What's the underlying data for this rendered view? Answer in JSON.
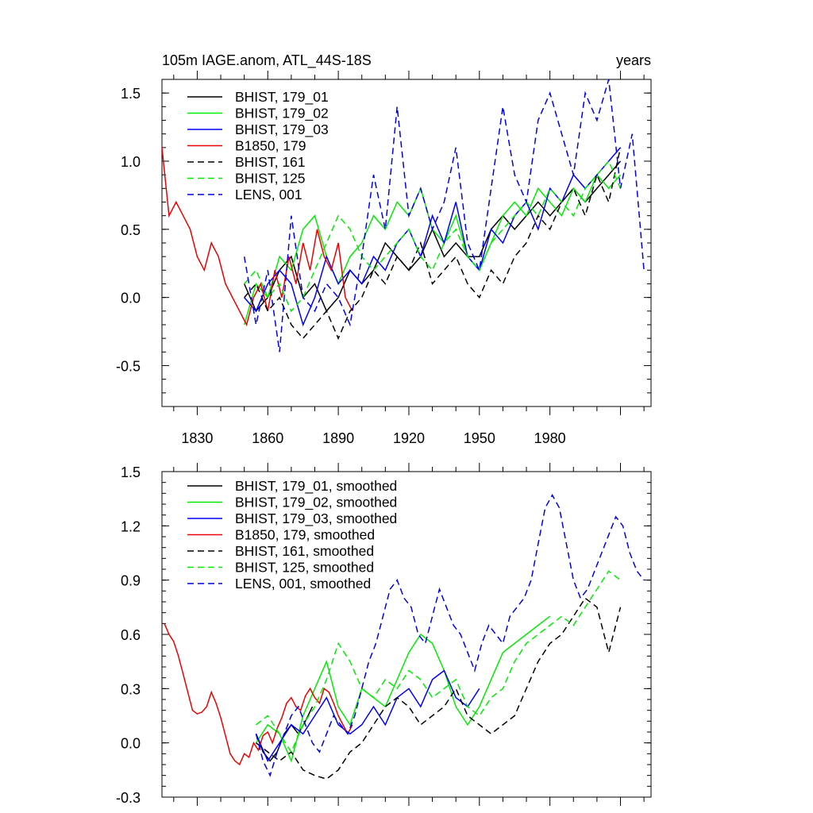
{
  "chart_data": [
    {
      "type": "line",
      "title": "105m IAGE.anom, ATL_44S-18S",
      "title_right": "years",
      "xlim": [
        1815,
        2023
      ],
      "ylim": [
        -0.8,
        1.6
      ],
      "yticks": [
        -0.5,
        0.0,
        0.5,
        1.0,
        1.5
      ],
      "ytick_labels": [
        "-0.5",
        "0.0",
        "0.5",
        "1.0",
        "1.5"
      ],
      "xticks": [
        1830,
        1860,
        1890,
        1920,
        1950,
        1980
      ],
      "xtick_labels": [
        "1830",
        "1860",
        "1890",
        "1920",
        "1950",
        "1980"
      ],
      "legend": [
        "BHIST, 179_01",
        "BHIST, 179_02",
        "BHIST, 179_03",
        "B1850, 179",
        "BHIST, 161",
        "BHIST, 125",
        "LENS, 001"
      ],
      "series": [
        {
          "name": "BHIST, 179_01",
          "color": "#000000",
          "dash": false,
          "x": [
            1850,
            1855,
            1860,
            1865,
            1870,
            1875,
            1880,
            1885,
            1890,
            1895,
            1900,
            1905,
            1910,
            1915,
            1920,
            1925,
            1930,
            1935,
            1940,
            1945,
            1950,
            1955,
            1960,
            1965,
            1970,
            1975,
            1980,
            1985,
            1990,
            1995,
            2000,
            2005,
            2010
          ],
          "y": [
            0.1,
            -0.1,
            0.0,
            0.2,
            0.3,
            0.0,
            0.1,
            -0.1,
            0.0,
            0.2,
            0.1,
            0.2,
            0.4,
            0.3,
            0.2,
            0.3,
            0.5,
            0.3,
            0.4,
            0.3,
            0.3,
            0.5,
            0.6,
            0.5,
            0.6,
            0.7,
            0.6,
            0.7,
            0.8,
            0.7,
            0.8,
            0.9,
            1.0
          ]
        },
        {
          "name": "BHIST, 179_02",
          "color": "#00ee00",
          "dash": false,
          "x": [
            1850,
            1855,
            1860,
            1865,
            1870,
            1875,
            1880,
            1885,
            1890,
            1895,
            1900,
            1905,
            1910,
            1915,
            1920,
            1925,
            1930,
            1935,
            1940,
            1945,
            1950,
            1955,
            1960,
            1965,
            1970,
            1975,
            1980,
            1985,
            1990,
            1995,
            2000,
            2005,
            2010
          ],
          "y": [
            -0.2,
            0.1,
            0.0,
            0.3,
            0.2,
            0.5,
            0.6,
            0.3,
            0.1,
            0.3,
            0.4,
            0.6,
            0.5,
            0.7,
            0.6,
            0.8,
            0.5,
            0.4,
            0.6,
            0.3,
            0.2,
            0.4,
            0.6,
            0.7,
            0.6,
            0.8,
            0.7,
            0.6,
            0.8,
            0.7,
            0.9,
            0.8,
            0.9
          ]
        },
        {
          "name": "BHIST, 179_03",
          "color": "#0000ff",
          "dash": false,
          "x": [
            1850,
            1855,
            1860,
            1865,
            1870,
            1875,
            1880,
            1885,
            1890,
            1895,
            1900,
            1905,
            1910,
            1915,
            1920,
            1925,
            1930,
            1935,
            1940,
            1945,
            1950,
            1955,
            1960,
            1965,
            1970,
            1975,
            1980,
            1985,
            1990,
            1995,
            2000,
            2005,
            2010
          ],
          "y": [
            0.0,
            -0.1,
            0.1,
            0.2,
            0.1,
            -0.2,
            0.0,
            0.3,
            0.1,
            0.2,
            0.1,
            0.3,
            0.2,
            0.4,
            0.5,
            0.3,
            0.6,
            0.4,
            0.7,
            0.3,
            0.2,
            0.5,
            0.4,
            0.6,
            0.7,
            0.5,
            0.8,
            0.7,
            0.9,
            0.8,
            0.9,
            1.0,
            1.1
          ]
        },
        {
          "name": "B1850, 179",
          "color": "#ee0000",
          "dash": false,
          "x": [
            1815,
            1818,
            1821,
            1824,
            1827,
            1830,
            1833,
            1836,
            1839,
            1842,
            1845,
            1848,
            1851,
            1854,
            1857,
            1860,
            1863,
            1866,
            1869,
            1872,
            1875,
            1878,
            1881,
            1884,
            1887,
            1890,
            1893,
            1896
          ],
          "y": [
            1.1,
            0.6,
            0.7,
            0.6,
            0.5,
            0.3,
            0.2,
            0.4,
            0.3,
            0.1,
            0.0,
            -0.1,
            -0.2,
            0.0,
            0.1,
            -0.1,
            0.2,
            0.0,
            0.3,
            0.1,
            0.4,
            0.2,
            0.5,
            0.3,
            0.2,
            0.4,
            0.0,
            -0.1
          ]
        },
        {
          "name": "BHIST, 161",
          "color": "#000000",
          "dash": true,
          "x": [
            1850,
            1855,
            1860,
            1865,
            1870,
            1875,
            1880,
            1885,
            1890,
            1895,
            1900,
            1905,
            1910,
            1915,
            1920,
            1925,
            1930,
            1935,
            1940,
            1945,
            1950,
            1955,
            1960,
            1965,
            1970,
            1975,
            1980,
            1985,
            1990,
            1995,
            2000,
            2005,
            2010
          ],
          "y": [
            0.0,
            0.1,
            -0.1,
            0.0,
            -0.2,
            -0.3,
            -0.2,
            -0.1,
            -0.3,
            -0.1,
            0.0,
            0.2,
            0.1,
            0.3,
            0.2,
            0.4,
            0.1,
            0.2,
            0.3,
            0.1,
            0.0,
            0.2,
            0.1,
            0.3,
            0.4,
            0.6,
            0.5,
            0.7,
            0.8,
            0.6,
            0.9,
            0.7,
            1.1
          ]
        },
        {
          "name": "BHIST, 125",
          "color": "#00ee00",
          "dash": true,
          "x": [
            1850,
            1855,
            1860,
            1865,
            1870,
            1875,
            1880,
            1885,
            1890,
            1895,
            1900,
            1905,
            1910,
            1915,
            1920,
            1925,
            1930,
            1935,
            1940,
            1945,
            1950,
            1955,
            1960,
            1965,
            1970,
            1975,
            1980,
            1985,
            1990,
            1995,
            2000,
            2005,
            2010
          ],
          "y": [
            0.1,
            0.2,
            0.0,
            0.1,
            -0.1,
            0.0,
            0.2,
            0.4,
            0.6,
            0.5,
            0.3,
            0.2,
            0.3,
            0.4,
            0.5,
            0.3,
            0.2,
            0.4,
            0.5,
            0.3,
            0.2,
            0.4,
            0.5,
            0.6,
            0.7,
            0.6,
            0.8,
            0.7,
            0.6,
            0.8,
            0.9,
            1.0,
            0.8
          ]
        },
        {
          "name": "LENS, 001",
          "color": "#0000ee",
          "dash": true,
          "x": [
            1850,
            1855,
            1860,
            1865,
            1870,
            1875,
            1880,
            1885,
            1890,
            1895,
            1900,
            1905,
            1910,
            1915,
            1920,
            1925,
            1930,
            1935,
            1940,
            1945,
            1950,
            1955,
            1960,
            1965,
            1970,
            1975,
            1980,
            1985,
            1990,
            1995,
            2000,
            2005,
            2010,
            2015,
            2020
          ],
          "y": [
            0.3,
            -0.2,
            0.2,
            -0.4,
            0.6,
            0.0,
            -0.1,
            0.1,
            0.0,
            -0.2,
            0.3,
            0.9,
            0.5,
            1.4,
            0.6,
            0.8,
            0.5,
            0.7,
            1.1,
            0.4,
            0.2,
            0.8,
            1.4,
            0.9,
            0.7,
            1.3,
            1.5,
            1.2,
            0.9,
            1.5,
            1.3,
            1.6,
            0.8,
            1.2,
            0.2
          ]
        }
      ]
    },
    {
      "type": "line",
      "title": "",
      "xlim": [
        1815,
        2023
      ],
      "ylim": [
        -0.3,
        1.5
      ],
      "yticks": [
        -0.3,
        0.0,
        0.3,
        0.6,
        0.9,
        1.2,
        1.5
      ],
      "ytick_labels": [
        "-0.3",
        "0.0",
        "0.3",
        "0.6",
        "0.9",
        "1.2",
        "1.5"
      ],
      "legend": [
        "BHIST, 179_01, smoothed",
        "BHIST, 179_02, smoothed",
        "BHIST, 179_03, smoothed",
        "B1850, 179, smoothed",
        "BHIST, 161, smoothed",
        "BHIST, 125, smoothed",
        "LENS, 001, smoothed"
      ],
      "series": [
        {
          "name": "BHIST, 179_01, smoothed",
          "color": "#000000",
          "dash": false,
          "x": [
            1855,
            1858,
            1861,
            1864,
            1867,
            1870,
            1873,
            1876,
            1879
          ],
          "y": [
            0.05,
            -0.05,
            -0.1,
            -0.05,
            0.05,
            0.1,
            0.05,
            0.12,
            0.2
          ]
        },
        {
          "name": "BHIST, 179_02, smoothed",
          "color": "#00ee00",
          "dash": false,
          "x": [
            1855,
            1860,
            1865,
            1870,
            1875,
            1880,
            1885,
            1890,
            1895,
            1900,
            1905,
            1910,
            1915,
            1920,
            1925,
            1930,
            1935,
            1940,
            1945,
            1950,
            1955,
            1960,
            1965,
            1970,
            1975,
            1980
          ],
          "y": [
            0.0,
            0.1,
            0.05,
            -0.1,
            0.15,
            0.3,
            0.45,
            0.2,
            0.1,
            0.3,
            0.25,
            0.2,
            0.35,
            0.5,
            0.6,
            0.55,
            0.4,
            0.2,
            0.1,
            0.2,
            0.35,
            0.5,
            0.55,
            0.6,
            0.65,
            0.7
          ]
        },
        {
          "name": "BHIST, 179_03, smoothed",
          "color": "#0000ff",
          "dash": false,
          "x": [
            1855,
            1860,
            1865,
            1870,
            1875,
            1880,
            1885,
            1890,
            1895,
            1900,
            1905,
            1910,
            1915,
            1920,
            1925,
            1930,
            1935,
            1940,
            1945,
            1950
          ],
          "y": [
            0.05,
            -0.1,
            0.0,
            0.1,
            0.05,
            0.15,
            0.25,
            0.1,
            0.05,
            0.1,
            0.2,
            0.1,
            0.25,
            0.3,
            0.2,
            0.35,
            0.4,
            0.25,
            0.2,
            0.3
          ]
        },
        {
          "name": "B1850, 179, smoothed",
          "color": "#ee0000",
          "dash": false,
          "x": [
            1816,
            1818,
            1820,
            1822,
            1824,
            1826,
            1828,
            1830,
            1832,
            1834,
            1836,
            1838,
            1840,
            1842,
            1844,
            1846,
            1848,
            1850,
            1852,
            1854,
            1856,
            1858,
            1860,
            1862,
            1864,
            1866,
            1868,
            1870,
            1872,
            1874,
            1876,
            1878,
            1880,
            1882,
            1884,
            1886,
            1888,
            1890,
            1892,
            1894,
            1896
          ],
          "y": [
            0.66,
            0.6,
            0.56,
            0.48,
            0.38,
            0.28,
            0.18,
            0.16,
            0.17,
            0.2,
            0.28,
            0.22,
            0.14,
            0.04,
            -0.06,
            -0.1,
            -0.12,
            -0.06,
            -0.08,
            0.0,
            -0.04,
            0.04,
            0.06,
            0.0,
            0.08,
            0.14,
            0.22,
            0.25,
            0.2,
            0.18,
            0.26,
            0.3,
            0.25,
            0.22,
            0.3,
            0.28,
            0.22,
            0.15,
            0.1,
            0.05,
            0.1
          ]
        },
        {
          "name": "BHIST, 161, smoothed",
          "color": "#000000",
          "dash": true,
          "x": [
            1855,
            1860,
            1865,
            1870,
            1875,
            1880,
            1885,
            1890,
            1895,
            1900,
            1905,
            1910,
            1915,
            1920,
            1925,
            1930,
            1935,
            1940,
            1945,
            1950,
            1955,
            1960,
            1965,
            1970,
            1975,
            1980,
            1985,
            1990,
            1995,
            2000,
            2005,
            2010
          ],
          "y": [
            0.0,
            -0.05,
            -0.1,
            -0.05,
            -0.15,
            -0.18,
            -0.2,
            -0.15,
            -0.05,
            0.0,
            0.1,
            0.2,
            0.25,
            0.2,
            0.1,
            0.15,
            0.2,
            0.3,
            0.15,
            0.1,
            0.05,
            0.1,
            0.15,
            0.3,
            0.45,
            0.55,
            0.6,
            0.7,
            0.8,
            0.75,
            0.5,
            0.75
          ]
        },
        {
          "name": "BHIST, 125, smoothed",
          "color": "#00ee00",
          "dash": true,
          "x": [
            1855,
            1860,
            1865,
            1870,
            1875,
            1880,
            1885,
            1890,
            1895,
            1900,
            1905,
            1910,
            1915,
            1920,
            1925,
            1930,
            1935,
            1940,
            1945,
            1950,
            1955,
            1960,
            1965,
            1970,
            1975,
            1980,
            1985,
            1990,
            1995,
            2000,
            2005,
            2010
          ],
          "y": [
            0.1,
            0.15,
            0.05,
            -0.05,
            0.1,
            0.2,
            0.35,
            0.55,
            0.45,
            0.3,
            0.25,
            0.35,
            0.3,
            0.4,
            0.35,
            0.25,
            0.3,
            0.35,
            0.2,
            0.15,
            0.25,
            0.3,
            0.45,
            0.55,
            0.6,
            0.65,
            0.7,
            0.65,
            0.75,
            0.85,
            0.95,
            0.9
          ]
        },
        {
          "name": "LENS, 001, smoothed",
          "color": "#0000ee",
          "dash": true,
          "x": [
            1855,
            1858,
            1861,
            1864,
            1867,
            1870,
            1873,
            1876,
            1879,
            1882,
            1885,
            1888,
            1891,
            1894,
            1897,
            1900,
            1903,
            1906,
            1909,
            1912,
            1915,
            1918,
            1921,
            1924,
            1927,
            1930,
            1933,
            1936,
            1939,
            1942,
            1945,
            1948,
            1951,
            1954,
            1957,
            1960,
            1963,
            1966,
            1969,
            1972,
            1975,
            1978,
            1981,
            1984,
            1987,
            1990,
            1993,
            1996,
            1999,
            2002,
            2005,
            2008,
            2011,
            2014,
            2017,
            2020
          ],
          "y": [
            0.05,
            -0.1,
            -0.18,
            -0.05,
            0.05,
            0.15,
            0.2,
            0.1,
            0.0,
            -0.05,
            0.05,
            0.15,
            0.1,
            0.05,
            0.15,
            0.3,
            0.45,
            0.55,
            0.7,
            0.85,
            0.9,
            0.8,
            0.75,
            0.6,
            0.55,
            0.7,
            0.85,
            0.75,
            0.65,
            0.6,
            0.5,
            0.4,
            0.55,
            0.65,
            0.6,
            0.55,
            0.7,
            0.75,
            0.8,
            0.9,
            1.1,
            1.3,
            1.37,
            1.3,
            1.1,
            0.9,
            0.8,
            0.85,
            0.95,
            1.05,
            1.15,
            1.25,
            1.2,
            1.05,
            0.95,
            0.9
          ]
        }
      ]
    }
  ]
}
